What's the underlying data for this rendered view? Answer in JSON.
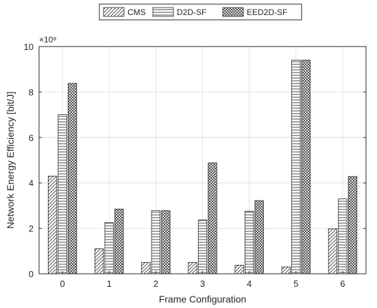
{
  "chart_data": {
    "type": "bar",
    "categories": [
      "0",
      "1",
      "2",
      "3",
      "4",
      "5",
      "6"
    ],
    "series": [
      {
        "name": "CMS",
        "values": [
          4.3,
          1.1,
          0.5,
          0.5,
          0.38,
          0.3,
          1.98
        ],
        "pattern": "diagonal"
      },
      {
        "name": "D2D-SF",
        "values": [
          7.0,
          2.25,
          2.78,
          2.37,
          2.75,
          9.4,
          3.3
        ],
        "pattern": "horizontal"
      },
      {
        "name": "EED2D-SF",
        "values": [
          8.38,
          2.85,
          2.78,
          4.88,
          3.22,
          9.4,
          4.28
        ],
        "pattern": "crosshatch"
      }
    ],
    "title": "",
    "xlabel": "Frame Configuration",
    "ylabel": "Network Energy Efficiency [bit/J]",
    "y_exponent_label": "×10⁸",
    "ylim": [
      0,
      10
    ],
    "yticks": [
      0,
      2,
      4,
      6,
      8,
      10
    ],
    "grid": true,
    "legend_position": "top-center"
  }
}
